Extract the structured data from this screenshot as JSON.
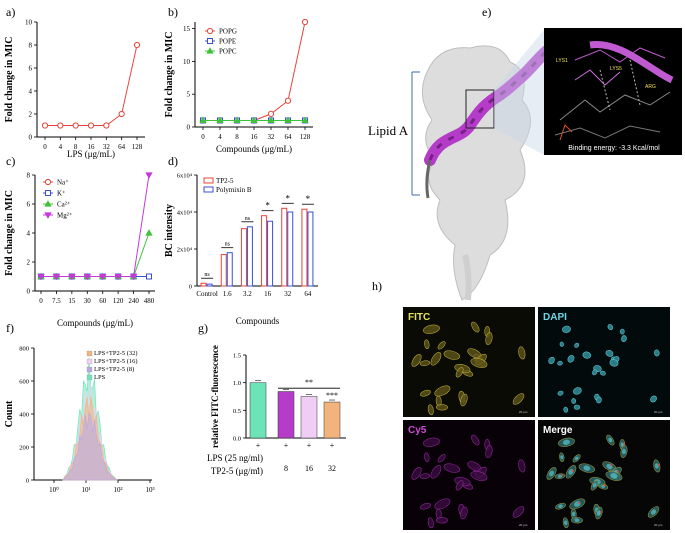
{
  "colors": {
    "red": "#e8443a",
    "blue": "#3a4fd8",
    "green": "#3fc23a",
    "magenta": "#c33ad8",
    "helix": "#b43cc8",
    "teal": "#6de3b8",
    "lavender": "#b9a7e6",
    "pink": "#f0cdf4",
    "orange": "#f2b47c"
  },
  "panels": {
    "a": "a)",
    "b": "b)",
    "c": "c)",
    "d": "d)",
    "e": "e)",
    "f": "f)",
    "g": "g)",
    "h": "h)"
  },
  "panel_e": {
    "lipid_label": "Lipid A",
    "binding_energy": "Binding energy: -3.3 Kcal/mol",
    "residues": [
      "LYS1",
      "LYS5",
      "ARG"
    ]
  },
  "panel_g_xtable": {
    "row1_label": "LPS (25 ng/ml)",
    "row2_label": "TP2-5 (μg/ml)",
    "row1": [
      "+",
      "+",
      "+",
      "+"
    ],
    "row2": [
      "-",
      "8",
      "16",
      "32"
    ]
  },
  "panel_h": {
    "labels": [
      "FITC",
      "DAPI",
      "Cy5",
      "Merge"
    ],
    "scale": "20 μm"
  },
  "chart_data": [
    {
      "id": "a",
      "type": "line",
      "ylabel": "Fold change in MIC",
      "xlabel": "LPS (μg/mL)",
      "categories": [
        "0",
        "4",
        "8",
        "16",
        "32",
        "64",
        "128"
      ],
      "yticks": [
        "0",
        "2",
        "4",
        "6",
        "8",
        "10"
      ],
      "ylim": [
        0,
        10
      ],
      "series": [
        {
          "values": [
            1,
            1,
            1,
            1,
            1,
            2,
            8
          ],
          "color": "#e8443a",
          "marker": "circle"
        }
      ]
    },
    {
      "id": "b",
      "type": "line",
      "ylabel": "Fold change in MIC",
      "xlabel": "Compounds (μg/mL)",
      "categories": [
        "0",
        "4",
        "8",
        "16",
        "32",
        "64",
        "128"
      ],
      "yticks": [
        "0",
        "5",
        "10",
        "15"
      ],
      "ylim": [
        0,
        16
      ],
      "legend": "top-left",
      "series": [
        {
          "name": "POPG",
          "values": [
            1,
            1,
            1,
            1,
            2,
            4,
            16
          ],
          "color": "#e8443a",
          "marker": "circle"
        },
        {
          "name": "POPE",
          "values": [
            1,
            1,
            1,
            1,
            1,
            1,
            1
          ],
          "color": "#3a4fd8",
          "marker": "square"
        },
        {
          "name": "POPC",
          "values": [
            1,
            1,
            1,
            1,
            1,
            1,
            1
          ],
          "color": "#3fc23a",
          "marker": "triangle"
        }
      ]
    },
    {
      "id": "c",
      "type": "line",
      "ylabel": "Fold change in MIC",
      "xlabel": "Compounds (μg/mL)",
      "categories": [
        "0",
        "7.5",
        "15",
        "30",
        "60",
        "120",
        "240",
        "480"
      ],
      "yticks": [
        "0",
        "2",
        "4",
        "6",
        "8"
      ],
      "ylim": [
        0,
        8
      ],
      "legend": "top-left",
      "series": [
        {
          "name": "Na⁺",
          "values": [
            1,
            1,
            1,
            1,
            1,
            1,
            1,
            1
          ],
          "color": "#e8443a",
          "marker": "circle"
        },
        {
          "name": "K⁺",
          "values": [
            1,
            1,
            1,
            1,
            1,
            1,
            1,
            1
          ],
          "color": "#3a4fd8",
          "marker": "square"
        },
        {
          "name": "Ca²⁺",
          "values": [
            1,
            1,
            1,
            1,
            1,
            1,
            1,
            4
          ],
          "color": "#3fc23a",
          "marker": "triangle"
        },
        {
          "name": "Mg²⁺",
          "values": [
            1,
            1,
            1,
            1,
            1,
            1,
            1,
            8
          ],
          "color": "#c33ad8",
          "marker": "triangle-down"
        }
      ]
    },
    {
      "id": "d",
      "type": "bar",
      "ylabel": "BC intensity",
      "xlabel": "Compounds",
      "categories": [
        "Control",
        "1.6",
        "3.2",
        "16",
        "32",
        "64"
      ],
      "yticks": [
        "0",
        "2x10⁴",
        "4x10⁴",
        "6x10⁴"
      ],
      "ylim": [
        0,
        60000
      ],
      "legend": "top-left",
      "series": [
        {
          "name": "TP2-5",
          "values": [
            1500,
            17000,
            31000,
            38000,
            42000,
            41500
          ],
          "color": "#e8443a"
        },
        {
          "name": "Polymixin B",
          "values": [
            1000,
            18000,
            32000,
            35000,
            40000,
            40000
          ],
          "color": "#3a4fd8"
        }
      ],
      "significance": [
        "ns",
        "ns",
        "ns",
        "*",
        "*",
        "*"
      ]
    },
    {
      "id": "f",
      "type": "area",
      "ylabel": "Count",
      "xticks": [
        "10⁰",
        "10¹",
        "10²",
        "10³"
      ],
      "yticks": [
        "0",
        "200",
        "400",
        "600",
        "800"
      ],
      "ylim": [
        0,
        800
      ],
      "legend": "top-right",
      "series": [
        {
          "name": "LPS+TP2-5 (32)",
          "peak": 540,
          "color": "#f2b47c"
        },
        {
          "name": "LPS+TP2-5 (16)",
          "peak": 600,
          "color": "#f0cdf4"
        },
        {
          "name": "LPS+TP2-5 (8)",
          "peak": 440,
          "color": "#b9a7e6"
        },
        {
          "name": "LPS",
          "peak": 740,
          "color": "#6de3b8"
        }
      ]
    },
    {
      "id": "g",
      "type": "bar",
      "ylabel": "relative FITC-fluorescence",
      "yticks": [
        "0.0",
        "0.5",
        "1.0",
        "1.5"
      ],
      "ylim": [
        0,
        1.5
      ],
      "values": [
        1.0,
        0.84,
        0.75,
        0.65
      ],
      "colors": [
        "#6de3b8",
        "#b43cc8",
        "#f0cdf4",
        "#f2b47c"
      ],
      "significance": [
        "**",
        "***"
      ]
    }
  ]
}
